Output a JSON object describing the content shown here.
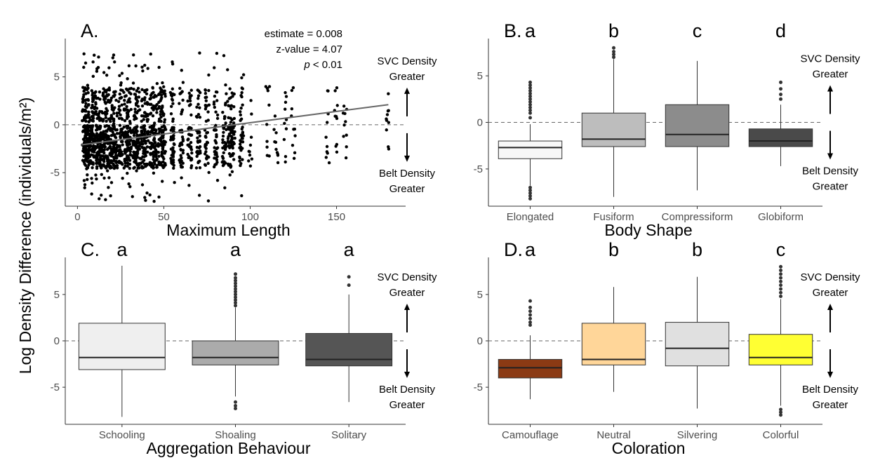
{
  "ylabel_shared": "Log Density Difference (individuals/m²)",
  "annotations": {
    "svc_line1": "SVC Density",
    "svc_line2": "Greater",
    "belt_line1": "Belt Density",
    "belt_line2": "Greater"
  },
  "chart_data": [
    {
      "type": "scatter",
      "panel_label": "A.",
      "xlabel": "Maximum Length",
      "xlim": [
        -3,
        190
      ],
      "ylim": [
        -8.5,
        9
      ],
      "xticks": [
        0,
        50,
        100,
        150
      ],
      "yticks": [
        -5,
        0,
        5
      ],
      "hline": 0,
      "stats": {
        "estimate": "estimate = 0.008",
        "zvalue": "z-value = 4.07",
        "p_label": "p",
        "p_rest": " < 0.01"
      },
      "fit": {
        "x": [
          2,
          180
        ],
        "y": [
          -2.1,
          2.1
        ]
      },
      "species_lengths": [
        4,
        5,
        6,
        8,
        10,
        12,
        14,
        16,
        18,
        20,
        22,
        25,
        28,
        30,
        33,
        35,
        38,
        40,
        43,
        45,
        48,
        50,
        55,
        60,
        65,
        70,
        75,
        80,
        85,
        88,
        90,
        95,
        100,
        110,
        115,
        120,
        125,
        145,
        150,
        155,
        180
      ]
    },
    {
      "type": "box",
      "panel_label": "B.",
      "xlabel": "Body Shape",
      "ylim": [
        -9,
        9
      ],
      "yticks": [
        -5,
        0,
        5
      ],
      "hline": 0,
      "categories": [
        "Elongated",
        "Fusiform",
        "Compressiform",
        "Globiform"
      ],
      "letters": [
        "a",
        "b",
        "c",
        "d"
      ],
      "colors": [
        "#f7f7f7",
        "#bdbdbd",
        "#8c8c8c",
        "#4a4a4a"
      ],
      "boxes": [
        {
          "q1": -3.9,
          "median": -2.7,
          "q3": -2.0,
          "whisker_low": -6.8,
          "whisker_high": -0.2,
          "outliers": [
            4.3,
            4.0,
            3.7,
            3.4,
            3.1,
            2.8,
            2.5,
            2.2,
            1.9,
            1.6,
            1.3,
            1.0,
            0.5,
            -7.0,
            -7.3,
            -7.6,
            -7.9,
            -8.2
          ]
        },
        {
          "q1": -2.6,
          "median": -1.8,
          "q3": 1.0,
          "whisker_low": -8.0,
          "whisker_high": 6.8,
          "outliers": [
            7.0,
            7.3,
            7.6,
            8.0
          ]
        },
        {
          "q1": -2.6,
          "median": -1.3,
          "q3": 1.9,
          "whisker_low": -7.3,
          "whisker_high": 6.6,
          "outliers": []
        },
        {
          "q1": -2.6,
          "median": -2.0,
          "q3": -0.7,
          "whisker_low": -4.7,
          "whisker_high": 1.9,
          "outliers": [
            2.5,
            3.0,
            3.6,
            4.3
          ]
        }
      ]
    },
    {
      "type": "box",
      "panel_label": "C.",
      "xlabel": "Aggregation Behaviour",
      "ylim": [
        -9,
        9
      ],
      "yticks": [
        -5,
        0,
        5
      ],
      "hline": 0,
      "categories": [
        "Schooling",
        "Shoaling",
        "Solitary"
      ],
      "letters": [
        "a",
        "a",
        "a"
      ],
      "colors": [
        "#efefef",
        "#ababab",
        "#555555"
      ],
      "boxes": [
        {
          "q1": -3.1,
          "median": -1.8,
          "q3": 1.9,
          "whisker_low": -8.2,
          "whisker_high": 8.1,
          "outliers": []
        },
        {
          "q1": -2.6,
          "median": -1.8,
          "q3": 0.0,
          "whisker_low": -6.0,
          "whisker_high": 3.6,
          "outliers": [
            3.8,
            4.1,
            4.4,
            4.7,
            5.0,
            5.3,
            5.6,
            5.9,
            6.2,
            6.5,
            6.8,
            7.2,
            -6.6,
            -7.0,
            -7.3
          ]
        },
        {
          "q1": -2.7,
          "median": -2.0,
          "q3": 0.8,
          "whisker_low": -6.6,
          "whisker_high": 5.0,
          "outliers": [
            6.0,
            6.9
          ]
        }
      ]
    },
    {
      "type": "box",
      "panel_label": "D.",
      "xlabel": "Coloration",
      "ylim": [
        -9,
        9
      ],
      "yticks": [
        -5,
        0,
        5
      ],
      "hline": 0,
      "categories": [
        "Camouflage",
        "Neutral",
        "Silvering",
        "Colorful"
      ],
      "letters": [
        "a",
        "b",
        "b",
        "c"
      ],
      "colors": [
        "#8b3a14",
        "#ffd699",
        "#e0e0e0",
        "#ffff33"
      ],
      "boxes": [
        {
          "q1": -4.0,
          "median": -2.9,
          "q3": -2.0,
          "whisker_low": -6.3,
          "whisker_high": 0.6,
          "outliers": [
            1.7,
            2.0,
            2.4,
            2.8,
            3.2,
            3.6,
            4.3
          ]
        },
        {
          "q1": -2.6,
          "median": -2.0,
          "q3": 1.9,
          "whisker_low": -5.5,
          "whisker_high": 5.8,
          "outliers": []
        },
        {
          "q1": -2.7,
          "median": -0.8,
          "q3": 2.0,
          "whisker_low": -7.3,
          "whisker_high": 6.9,
          "outliers": []
        },
        {
          "q1": -2.6,
          "median": -1.8,
          "q3": 0.7,
          "whisker_low": -7.0,
          "whisker_high": 4.5,
          "outliers": [
            4.8,
            5.2,
            5.6,
            6.0,
            6.4,
            6.8,
            7.2,
            7.6,
            8.0,
            -7.4,
            -7.7,
            -8.0
          ]
        }
      ]
    }
  ]
}
